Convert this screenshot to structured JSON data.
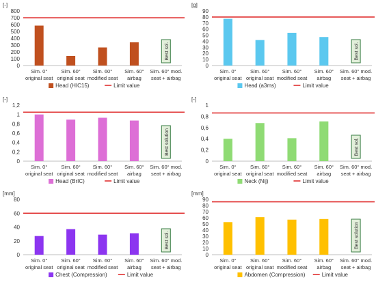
{
  "shared": {
    "categories": [
      [
        "Sim. 0°",
        "original seat"
      ],
      [
        "Sim. 60°",
        "original seat"
      ],
      [
        "Sim. 60°",
        "modified seat"
      ],
      [
        "Sim. 60°",
        "airbag"
      ],
      [
        "Sim. 60° mod.",
        "seat + airbag"
      ]
    ],
    "limit_label": "Limit value",
    "colors": {
      "limit": "#e03030",
      "axis": "#bfbfbf",
      "text": "#333333",
      "badge_fill": "#e2efda",
      "badge_border": "#3a7d44"
    }
  },
  "chart_data": [
    {
      "type": "bar",
      "unit": "[-]",
      "series_name": "Head (HIC15)",
      "color": "#c0501f",
      "yticks": [
        0,
        100,
        200,
        300,
        400,
        500,
        600,
        700,
        800
      ],
      "ylim": [
        0,
        800
      ],
      "limit": 700,
      "values": [
        585,
        140,
        265,
        340,
        null
      ],
      "badge": "Best sol."
    },
    {
      "type": "bar",
      "unit": "[g]",
      "series_name": "Head (a3ms)",
      "color": "#5bc8ef",
      "yticks": [
        0,
        10,
        20,
        30,
        40,
        50,
        60,
        70,
        80,
        90
      ],
      "ylim": [
        0,
        90
      ],
      "limit": 80,
      "values": [
        77,
        42,
        54,
        47,
        null
      ],
      "badge": "Best sol."
    },
    {
      "type": "bar",
      "unit": "[-]",
      "series_name": "Head (BrIC)",
      "color": "#dd6fd6",
      "yticks": [
        0,
        0.2,
        0.4,
        0.6,
        0.8,
        1,
        1.2
      ],
      "ytick_labels": [
        "0",
        "0,2",
        "0,4",
        "0,6",
        "0,8",
        "1",
        "1,2"
      ],
      "ylim": [
        0,
        1.2
      ],
      "limit": 1.05,
      "values": [
        1.0,
        0.89,
        0.93,
        0.87,
        null
      ],
      "badge": "Best solution"
    },
    {
      "type": "bar",
      "unit": "[-]",
      "series_name": "Neck (Nij)",
      "color": "#8fdb74",
      "yticks": [
        0,
        0.2,
        0.4,
        0.6,
        0.8,
        1
      ],
      "ytick_labels": [
        "0",
        "0,2",
        "0,4",
        "0,6",
        "0,8",
        "1"
      ],
      "ylim": [
        0,
        1
      ],
      "limit": 0.86,
      "values": [
        0.4,
        0.68,
        0.41,
        0.71,
        null
      ],
      "badge": "Best sol."
    },
    {
      "type": "bar",
      "unit": "[mm]",
      "series_name": "Chest (Compression)",
      "color": "#8c35f0",
      "yticks": [
        0,
        20,
        40,
        60,
        80
      ],
      "ylim": [
        0,
        80
      ],
      "limit": 60,
      "values": [
        27,
        37,
        29,
        31,
        null
      ],
      "badge": "Best sol."
    },
    {
      "type": "bar",
      "unit": "[mm]",
      "series_name": "Abdomen (Compression)",
      "color": "#ffc000",
      "yticks": [
        0,
        10,
        20,
        30,
        40,
        50,
        60,
        70,
        80,
        90
      ],
      "ylim": [
        0,
        90
      ],
      "limit": 86,
      "values": [
        53,
        61,
        57,
        58,
        null
      ],
      "badge": "Best solution"
    }
  ]
}
